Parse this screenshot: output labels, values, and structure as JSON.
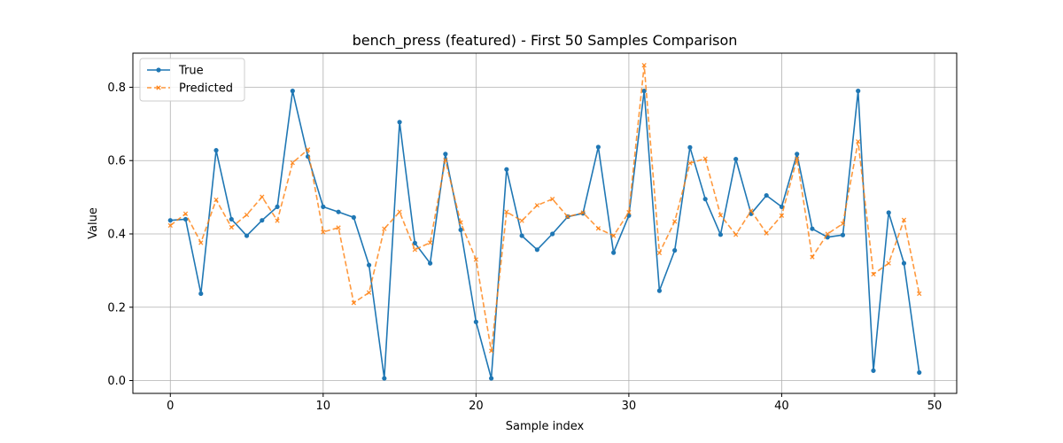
{
  "chart_data": {
    "type": "line",
    "title": "bench_press (featured) - First 50 Samples Comparison",
    "xlabel": "Sample index",
    "ylabel": "Value",
    "xlim": [
      -2.45,
      51.45
    ],
    "ylim": [
      -0.035,
      0.893
    ],
    "x_ticks": [
      0,
      10,
      20,
      30,
      40,
      50
    ],
    "y_ticks": [
      0.0,
      0.2,
      0.4,
      0.6,
      0.8
    ],
    "grid": true,
    "legend_position": "top-left",
    "x": [
      0,
      1,
      2,
      3,
      4,
      5,
      6,
      7,
      8,
      9,
      10,
      11,
      12,
      13,
      14,
      15,
      16,
      17,
      18,
      19,
      20,
      21,
      22,
      23,
      24,
      25,
      26,
      27,
      28,
      29,
      30,
      31,
      32,
      33,
      34,
      35,
      36,
      37,
      38,
      39,
      40,
      41,
      42,
      43,
      44,
      45,
      46,
      47,
      48,
      49
    ],
    "series": [
      {
        "name": "True",
        "color": "#1f77b4",
        "style": "solid",
        "marker": "circle",
        "values": [
          0.437,
          0.44,
          0.237,
          0.628,
          0.44,
          0.395,
          0.437,
          0.474,
          0.79,
          0.611,
          0.474,
          0.46,
          0.445,
          0.315,
          0.006,
          0.705,
          0.375,
          0.32,
          0.618,
          0.411,
          0.16,
          0.006,
          0.576,
          0.395,
          0.357,
          0.4,
          0.447,
          0.456,
          0.637,
          0.349,
          0.45,
          0.79,
          0.245,
          0.355,
          0.636,
          0.495,
          0.398,
          0.604,
          0.455,
          0.505,
          0.474,
          0.618,
          0.414,
          0.391,
          0.397,
          0.79,
          0.027,
          0.458,
          0.32,
          0.022
        ]
      },
      {
        "name": "Predicted",
        "color": "#ff7f0e",
        "style": "dashed",
        "marker": "x",
        "values": [
          0.423,
          0.455,
          0.376,
          0.493,
          0.418,
          0.452,
          0.501,
          0.436,
          0.594,
          0.63,
          0.405,
          0.417,
          0.212,
          0.24,
          0.414,
          0.46,
          0.357,
          0.376,
          0.601,
          0.431,
          0.33,
          0.081,
          0.46,
          0.436,
          0.478,
          0.495,
          0.447,
          0.458,
          0.415,
          0.395,
          0.459,
          0.86,
          0.348,
          0.434,
          0.593,
          0.605,
          0.451,
          0.398,
          0.463,
          0.402,
          0.45,
          0.605,
          0.337,
          0.4,
          0.428,
          0.652,
          0.29,
          0.32,
          0.438,
          0.237
        ]
      }
    ]
  }
}
